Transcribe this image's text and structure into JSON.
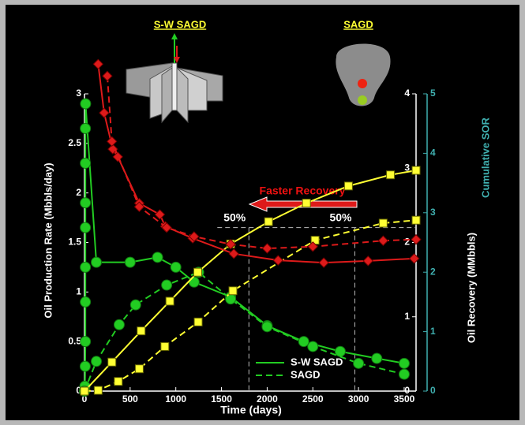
{
  "chart_data": {
    "type": "line",
    "xlabel": "Time (days)",
    "ylabel": "Oil Production Rate (Mbbls/day)",
    "y2label": "Oil Recovery (MMbbls)",
    "y3label": "Cumulative SOR",
    "xlim": [
      0,
      3630
    ],
    "xticks": [
      0,
      500,
      1000,
      1500,
      2000,
      2500,
      3000,
      3500
    ],
    "ylim": [
      0,
      3
    ],
    "yticks": [
      0,
      0.5,
      1,
      1.5,
      2,
      2.5,
      3
    ],
    "y2lim": [
      0,
      4
    ],
    "y2ticks": [
      0,
      1,
      2,
      3,
      4
    ],
    "y3lim": [
      0,
      5
    ],
    "y3ticks": [
      0,
      1,
      2,
      3,
      4,
      5
    ],
    "y3color": "#40b0b0",
    "icon_labels": [
      "S-W SAGD",
      "SAGD"
    ],
    "annotation": "Faster Recovery",
    "half_recovery": {
      "label": "50%",
      "recovery": 2.2,
      "days": [
        1800,
        2960
      ]
    },
    "series": [
      {
        "name": "S-W SAGD",
        "color": "#22cc22",
        "dash": false,
        "marker": "circle",
        "axis": "y",
        "x": [
          0,
          5,
          8,
          10,
          10,
          10,
          10,
          10,
          10,
          10,
          12,
          130,
          500,
          800,
          1000,
          1200,
          1600,
          2000,
          2400,
          2800,
          3200,
          3500
        ],
        "values": [
          0,
          0.05,
          0.25,
          0.5,
          0.9,
          1.25,
          1.65,
          1.9,
          2.3,
          2.65,
          2.9,
          1.3,
          1.3,
          1.35,
          1.25,
          1.1,
          0.95,
          0.66,
          0.5,
          0.4,
          0.33,
          0.28
        ]
      },
      {
        "name": "SAGD",
        "color": "#22cc22",
        "dash": true,
        "marker": "circle",
        "axis": "y",
        "x": [
          0,
          130,
          380,
          560,
          900,
          1250,
          1600,
          2000,
          2500,
          3000,
          3500
        ],
        "values": [
          0,
          0.3,
          0.67,
          0.87,
          1.07,
          1.2,
          0.93,
          0.65,
          0.45,
          0.28,
          0.17
        ]
      },
      {
        "color": "#ffff33",
        "dash": false,
        "marker": "square",
        "axis": "y2",
        "x": [
          0,
          300,
          620,
          935,
          1240,
          1600,
          2015,
          2430,
          2890,
          3350,
          3630
        ],
        "values": [
          0,
          0.39,
          0.81,
          1.21,
          1.6,
          1.98,
          2.28,
          2.53,
          2.76,
          2.91,
          2.97
        ]
      },
      {
        "color": "#ffff33",
        "dash": true,
        "marker": "square",
        "axis": "y2",
        "x": [
          0,
          150,
          370,
          600,
          880,
          1245,
          1625,
          2525,
          3270,
          3630
        ],
        "values": [
          0,
          0.01,
          0.13,
          0.3,
          0.6,
          0.93,
          1.35,
          2.03,
          2.26,
          2.3
        ]
      },
      {
        "color": "#dd1a1a",
        "dash": false,
        "marker": "diamond",
        "axis": "y3",
        "x": [
          150,
          215,
          310,
          365,
          600,
          825,
          885,
          1185,
          1635,
          2120,
          2620,
          3105,
          3610
        ],
        "values": [
          5.5,
          4.68,
          4.07,
          3.94,
          3.16,
          2.97,
          2.77,
          2.57,
          2.31,
          2.2,
          2.16,
          2.19,
          2.23
        ]
      },
      {
        "color": "#dd1a1a",
        "dash": true,
        "marker": "diamond",
        "axis": "y3",
        "x": [
          250,
          300,
          600,
          900,
          1200,
          1600,
          2000,
          2500,
          3270,
          3630
        ],
        "values": [
          5.3,
          4.2,
          3.1,
          2.75,
          2.6,
          2.47,
          2.4,
          2.43,
          2.53,
          2.55
        ]
      }
    ]
  }
}
